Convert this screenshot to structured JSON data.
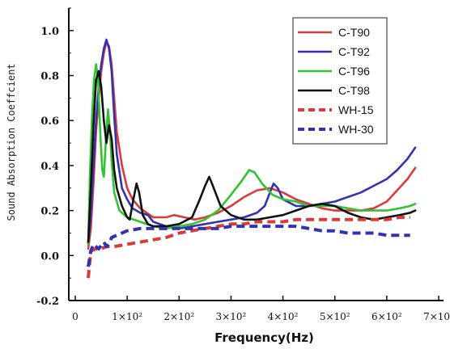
{
  "chart_data": {
    "type": "line",
    "title": "",
    "xlabel": "Frequency(Hz)",
    "ylabel": "Sound Absorption Coeffcient",
    "xlim": [
      0,
      700
    ],
    "ylim": [
      -0.2,
      1.1
    ],
    "x_ticks": [
      {
        "value": 0,
        "label": "0"
      },
      {
        "value": 100,
        "label": "1×10²"
      },
      {
        "value": 200,
        "label": "2×10²"
      },
      {
        "value": 300,
        "label": "3×10²"
      },
      {
        "value": 400,
        "label": "4×10²"
      },
      {
        "value": 500,
        "label": "5×10²"
      },
      {
        "value": 600,
        "label": "6×10²"
      },
      {
        "value": 700,
        "label": "7×10²"
      }
    ],
    "y_ticks": [
      {
        "value": -0.2,
        "label": "-0.2"
      },
      {
        "value": 0.0,
        "label": "0.0"
      },
      {
        "value": 0.2,
        "label": "0.2"
      },
      {
        "value": 0.4,
        "label": "0.4"
      },
      {
        "value": 0.6,
        "label": "0.6"
      },
      {
        "value": 0.8,
        "label": "0.8"
      },
      {
        "value": 1.0,
        "label": "1.0"
      }
    ],
    "grid": false,
    "legend_position": "top-right",
    "series": [
      {
        "name": "C-T90",
        "color": "#d93b3b",
        "dash": "solid",
        "points": [
          [
            25,
            0.03
          ],
          [
            30,
            0.12
          ],
          [
            35,
            0.32
          ],
          [
            40,
            0.55
          ],
          [
            45,
            0.7
          ],
          [
            50,
            0.82
          ],
          [
            55,
            0.9
          ],
          [
            60,
            0.95
          ],
          [
            65,
            0.93
          ],
          [
            70,
            0.85
          ],
          [
            75,
            0.7
          ],
          [
            80,
            0.55
          ],
          [
            90,
            0.4
          ],
          [
            100,
            0.3
          ],
          [
            110,
            0.25
          ],
          [
            125,
            0.21
          ],
          [
            150,
            0.17
          ],
          [
            175,
            0.17
          ],
          [
            190,
            0.18
          ],
          [
            210,
            0.17
          ],
          [
            230,
            0.16
          ],
          [
            250,
            0.17
          ],
          [
            275,
            0.19
          ],
          [
            300,
            0.22
          ],
          [
            325,
            0.26
          ],
          [
            350,
            0.29
          ],
          [
            375,
            0.3
          ],
          [
            400,
            0.28
          ],
          [
            425,
            0.25
          ],
          [
            450,
            0.23
          ],
          [
            475,
            0.21
          ],
          [
            500,
            0.2
          ],
          [
            525,
            0.2
          ],
          [
            550,
            0.2
          ],
          [
            575,
            0.21
          ],
          [
            600,
            0.24
          ],
          [
            620,
            0.29
          ],
          [
            640,
            0.34
          ],
          [
            655,
            0.39
          ]
        ]
      },
      {
        "name": "C-T92",
        "color": "#3333b0",
        "dash": "solid",
        "points": [
          [
            25,
            0.05
          ],
          [
            30,
            0.18
          ],
          [
            35,
            0.4
          ],
          [
            40,
            0.6
          ],
          [
            45,
            0.75
          ],
          [
            50,
            0.85
          ],
          [
            55,
            0.92
          ],
          [
            60,
            0.96
          ],
          [
            65,
            0.92
          ],
          [
            70,
            0.82
          ],
          [
            75,
            0.62
          ],
          [
            80,
            0.45
          ],
          [
            90,
            0.3
          ],
          [
            100,
            0.25
          ],
          [
            110,
            0.21
          ],
          [
            125,
            0.19
          ],
          [
            140,
            0.18
          ],
          [
            150,
            0.15
          ],
          [
            175,
            0.13
          ],
          [
            200,
            0.12
          ],
          [
            225,
            0.13
          ],
          [
            250,
            0.14
          ],
          [
            275,
            0.15
          ],
          [
            300,
            0.16
          ],
          [
            325,
            0.17
          ],
          [
            350,
            0.19
          ],
          [
            365,
            0.22
          ],
          [
            375,
            0.28
          ],
          [
            382,
            0.32
          ],
          [
            390,
            0.3
          ],
          [
            400,
            0.25
          ],
          [
            425,
            0.22
          ],
          [
            450,
            0.22
          ],
          [
            475,
            0.23
          ],
          [
            500,
            0.24
          ],
          [
            525,
            0.26
          ],
          [
            550,
            0.28
          ],
          [
            575,
            0.31
          ],
          [
            600,
            0.34
          ],
          [
            620,
            0.38
          ],
          [
            640,
            0.43
          ],
          [
            655,
            0.48
          ]
        ]
      },
      {
        "name": "C-T96",
        "color": "#33c233",
        "dash": "solid",
        "points": [
          [
            25,
            0.05
          ],
          [
            28,
            0.35
          ],
          [
            32,
            0.6
          ],
          [
            36,
            0.78
          ],
          [
            40,
            0.85
          ],
          [
            44,
            0.78
          ],
          [
            48,
            0.55
          ],
          [
            52,
            0.38
          ],
          [
            55,
            0.35
          ],
          [
            60,
            0.55
          ],
          [
            63,
            0.65
          ],
          [
            67,
            0.55
          ],
          [
            70,
            0.42
          ],
          [
            75,
            0.28
          ],
          [
            85,
            0.2
          ],
          [
            100,
            0.17
          ],
          [
            125,
            0.15
          ],
          [
            150,
            0.13
          ],
          [
            175,
            0.12
          ],
          [
            200,
            0.13
          ],
          [
            225,
            0.14
          ],
          [
            250,
            0.16
          ],
          [
            275,
            0.2
          ],
          [
            300,
            0.27
          ],
          [
            320,
            0.33
          ],
          [
            335,
            0.38
          ],
          [
            345,
            0.37
          ],
          [
            360,
            0.32
          ],
          [
            380,
            0.27
          ],
          [
            400,
            0.25
          ],
          [
            425,
            0.24
          ],
          [
            450,
            0.22
          ],
          [
            475,
            0.22
          ],
          [
            500,
            0.22
          ],
          [
            525,
            0.21
          ],
          [
            550,
            0.2
          ],
          [
            575,
            0.2
          ],
          [
            600,
            0.2
          ],
          [
            625,
            0.21
          ],
          [
            645,
            0.22
          ],
          [
            655,
            0.23
          ]
        ]
      },
      {
        "name": "C-T98",
        "color": "#111111",
        "dash": "solid",
        "points": [
          [
            25,
            0.06
          ],
          [
            30,
            0.3
          ],
          [
            35,
            0.58
          ],
          [
            40,
            0.78
          ],
          [
            45,
            0.82
          ],
          [
            50,
            0.75
          ],
          [
            55,
            0.6
          ],
          [
            60,
            0.5
          ],
          [
            65,
            0.58
          ],
          [
            70,
            0.52
          ],
          [
            75,
            0.38
          ],
          [
            80,
            0.3
          ],
          [
            90,
            0.22
          ],
          [
            100,
            0.17
          ],
          [
            105,
            0.16
          ],
          [
            112,
            0.25
          ],
          [
            118,
            0.32
          ],
          [
            123,
            0.28
          ],
          [
            130,
            0.18
          ],
          [
            140,
            0.14
          ],
          [
            150,
            0.13
          ],
          [
            175,
            0.13
          ],
          [
            200,
            0.14
          ],
          [
            225,
            0.17
          ],
          [
            240,
            0.25
          ],
          [
            250,
            0.31
          ],
          [
            258,
            0.35
          ],
          [
            265,
            0.31
          ],
          [
            280,
            0.22
          ],
          [
            300,
            0.18
          ],
          [
            325,
            0.16
          ],
          [
            350,
            0.16
          ],
          [
            375,
            0.17
          ],
          [
            400,
            0.18
          ],
          [
            425,
            0.2
          ],
          [
            450,
            0.22
          ],
          [
            475,
            0.23
          ],
          [
            500,
            0.22
          ],
          [
            525,
            0.19
          ],
          [
            550,
            0.17
          ],
          [
            575,
            0.16
          ],
          [
            600,
            0.17
          ],
          [
            625,
            0.18
          ],
          [
            645,
            0.19
          ],
          [
            655,
            0.2
          ]
        ]
      },
      {
        "name": "WH-15",
        "color": "#d93b3b",
        "dash": "dashed",
        "points": [
          [
            25,
            -0.1
          ],
          [
            30,
            0.02
          ],
          [
            40,
            0.03
          ],
          [
            50,
            0.03
          ],
          [
            60,
            0.04
          ],
          [
            75,
            0.04
          ],
          [
            100,
            0.05
          ],
          [
            125,
            0.06
          ],
          [
            150,
            0.07
          ],
          [
            175,
            0.08
          ],
          [
            200,
            0.1
          ],
          [
            225,
            0.11
          ],
          [
            250,
            0.12
          ],
          [
            275,
            0.13
          ],
          [
            300,
            0.14
          ],
          [
            325,
            0.14
          ],
          [
            350,
            0.15
          ],
          [
            375,
            0.15
          ],
          [
            400,
            0.15
          ],
          [
            425,
            0.16
          ],
          [
            450,
            0.16
          ],
          [
            475,
            0.16
          ],
          [
            500,
            0.16
          ],
          [
            525,
            0.16
          ],
          [
            550,
            0.16
          ],
          [
            575,
            0.16
          ],
          [
            600,
            0.16
          ],
          [
            625,
            0.17
          ],
          [
            645,
            0.17
          ]
        ]
      },
      {
        "name": "WH-30",
        "color": "#3333b0",
        "dash": "dashed",
        "points": [
          [
            25,
            -0.05
          ],
          [
            30,
            0.02
          ],
          [
            35,
            0.05
          ],
          [
            45,
            0.03
          ],
          [
            55,
            0.06
          ],
          [
            60,
            0.04
          ],
          [
            65,
            0.05
          ],
          [
            70,
            0.08
          ],
          [
            80,
            0.09
          ],
          [
            100,
            0.11
          ],
          [
            125,
            0.12
          ],
          [
            150,
            0.12
          ],
          [
            175,
            0.12
          ],
          [
            200,
            0.12
          ],
          [
            225,
            0.12
          ],
          [
            250,
            0.12
          ],
          [
            275,
            0.12
          ],
          [
            300,
            0.13
          ],
          [
            325,
            0.13
          ],
          [
            350,
            0.13
          ],
          [
            375,
            0.13
          ],
          [
            400,
            0.13
          ],
          [
            425,
            0.13
          ],
          [
            450,
            0.12
          ],
          [
            475,
            0.11
          ],
          [
            500,
            0.11
          ],
          [
            525,
            0.1
          ],
          [
            550,
            0.1
          ],
          [
            575,
            0.1
          ],
          [
            600,
            0.09
          ],
          [
            625,
            0.09
          ],
          [
            645,
            0.09
          ]
        ]
      }
    ]
  }
}
